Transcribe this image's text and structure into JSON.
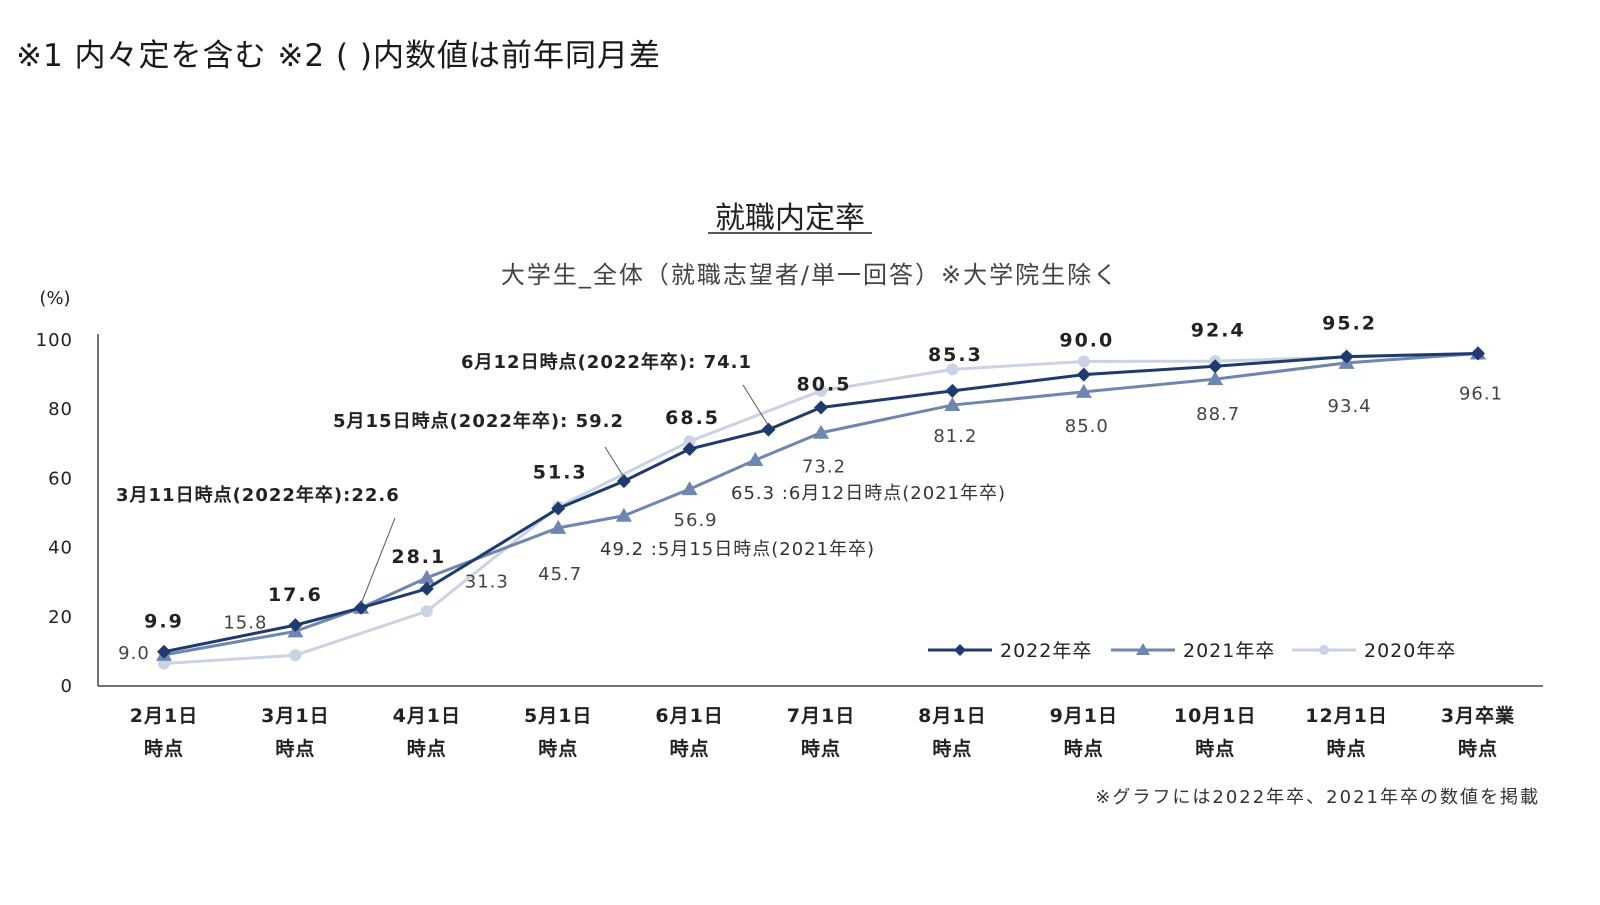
{
  "header_note": "※1 内々定を含む ※2 ( )内数値は前年同月差",
  "footnote": "※グラフには2022年卒、2021年卒の数値を掲載",
  "colors": {
    "s2022": "#1f3a6e",
    "s2021": "#6e86b0",
    "s2020": "#c9d3e3",
    "axis": "#444444"
  },
  "chart_data": {
    "type": "line",
    "title": "就職内定率",
    "subtitle": "大学生_全体（就職志望者/単一回答）※大学院生除く",
    "ylabel": "(%)",
    "ylim": [
      0,
      100
    ],
    "yticks": [
      "0",
      "20",
      "40",
      "60",
      "80",
      "100"
    ],
    "categories": [
      [
        "2月1日",
        "時点"
      ],
      [
        "3月1日",
        "時点"
      ],
      [
        "4月1日",
        "時点"
      ],
      [
        "5月1日",
        "時点"
      ],
      [
        "6月1日",
        "時点"
      ],
      [
        "7月1日",
        "時点"
      ],
      [
        "8月1日",
        "時点"
      ],
      [
        "9月1日",
        "時点"
      ],
      [
        "10月1日",
        "時点"
      ],
      [
        "12月1日",
        "時点"
      ],
      [
        "3月卒業",
        "時点"
      ]
    ],
    "legend_position": "bottom-right",
    "series": [
      {
        "name": "2022年卒",
        "marker": "diamond",
        "x": [
          0,
          1,
          1.5,
          2,
          3,
          3.5,
          4,
          4.6,
          5,
          6,
          7,
          8,
          9,
          10
        ],
        "y": [
          9.9,
          17.6,
          22.6,
          28.1,
          51.3,
          59.2,
          68.5,
          74.1,
          80.5,
          85.3,
          90.0,
          92.4,
          95.2,
          96.1
        ]
      },
      {
        "name": "2021年卒",
        "marker": "triangle",
        "x": [
          0,
          1,
          1.5,
          2,
          3,
          3.5,
          4,
          4.5,
          5,
          6,
          7,
          8,
          9,
          10
        ],
        "y": [
          9.0,
          15.8,
          22.6,
          31.3,
          45.7,
          49.2,
          56.9,
          65.3,
          73.2,
          81.2,
          85.0,
          88.7,
          93.4,
          96.1
        ]
      },
      {
        "name": "2020年卒",
        "marker": "circle",
        "x": [
          0,
          1,
          2,
          3,
          4,
          5,
          6,
          7,
          8,
          9,
          10
        ],
        "y": [
          6.5,
          8.9,
          21.6,
          51.8,
          70.7,
          85.3,
          91.5,
          93.8,
          93.9,
          95.1,
          96.1
        ]
      }
    ],
    "data_labels": [
      {
        "text": "9.9",
        "x": 0,
        "y": 9.9,
        "style": "bold"
      },
      {
        "text": "9.0",
        "x": 0,
        "y": 9.0,
        "style": "plain"
      },
      {
        "text": "17.6",
        "x": 1,
        "y": 17.6,
        "style": "bold"
      },
      {
        "text": "15.8",
        "x": 1,
        "y": 15.8,
        "style": "plain"
      },
      {
        "text": "28.1",
        "x": 2,
        "y": 28.1,
        "style": "bold"
      },
      {
        "text": "31.3",
        "x": 2,
        "y": 31.3,
        "style": "plain"
      },
      {
        "text": "51.3",
        "x": 3,
        "y": 51.3,
        "style": "bold"
      },
      {
        "text": "45.7",
        "x": 3,
        "y": 45.7,
        "style": "plain"
      },
      {
        "text": "68.5",
        "x": 4,
        "y": 68.5,
        "style": "bold"
      },
      {
        "text": "56.9",
        "x": 4,
        "y": 56.9,
        "style": "plain"
      },
      {
        "text": "80.5",
        "x": 5,
        "y": 80.5,
        "style": "bold"
      },
      {
        "text": "73.2",
        "x": 5,
        "y": 73.2,
        "style": "plain"
      },
      {
        "text": "85.3",
        "x": 6,
        "y": 85.3,
        "style": "bold"
      },
      {
        "text": "81.2",
        "x": 6,
        "y": 81.2,
        "style": "plain"
      },
      {
        "text": "90.0",
        "x": 7,
        "y": 90.0,
        "style": "bold"
      },
      {
        "text": "85.0",
        "x": 7,
        "y": 85.0,
        "style": "plain"
      },
      {
        "text": "92.4",
        "x": 8,
        "y": 92.4,
        "style": "bold"
      },
      {
        "text": "88.7",
        "x": 8,
        "y": 88.7,
        "style": "plain"
      },
      {
        "text": "95.2",
        "x": 9,
        "y": 95.2,
        "style": "bold"
      },
      {
        "text": "93.4",
        "x": 9,
        "y": 93.4,
        "style": "plain"
      },
      {
        "text": "96.1",
        "x": 10,
        "y": 96.1,
        "style": "plain"
      }
    ],
    "annotations": [
      {
        "text": "3月11日時点(2022年卒):22.6",
        "series": "2022年卒",
        "x": 1.5,
        "y": 22.6
      },
      {
        "text": "5月15日時点(2022年卒): 59.2",
        "series": "2022年卒",
        "x": 3.5,
        "y": 59.2
      },
      {
        "text": "6月12日時点(2022年卒): 74.1",
        "series": "2022年卒",
        "x": 4.6,
        "y": 74.1
      },
      {
        "text": "49.2 :5月15日時点(2021年卒)",
        "series": "2021年卒",
        "x": 3.5,
        "y": 49.2
      },
      {
        "text": "65.3 :6月12日時点(2021年卒)",
        "series": "2021年卒",
        "x": 4.5,
        "y": 65.3
      }
    ]
  }
}
